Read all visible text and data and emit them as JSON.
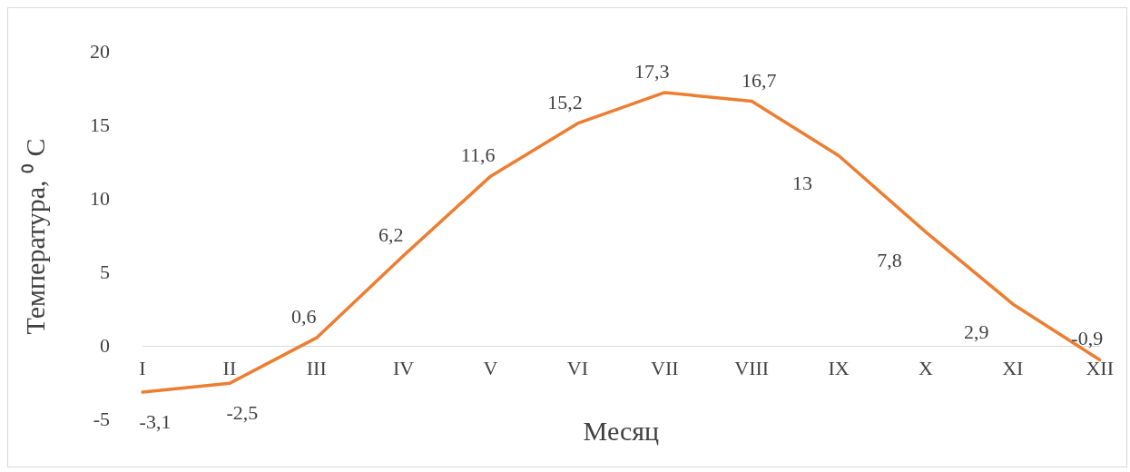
{
  "chart_data": {
    "type": "line",
    "xlabel": "Месяц",
    "ylabel": "Температура, ⁰ C",
    "categories": [
      "I",
      "II",
      "III",
      "IV",
      "V",
      "VI",
      "VII",
      "VIII",
      "IX",
      "X",
      "XI",
      "XII"
    ],
    "series": [
      {
        "color": "#ed7d31",
        "values": [
          -3.1,
          -2.5,
          0.6,
          6.2,
          11.6,
          15.2,
          17.3,
          16.7,
          13,
          7.8,
          2.9,
          -0.9
        ],
        "value_labels": [
          "-3,1",
          "-2,5",
          "0,6",
          "6,2",
          "11,6",
          "15,2",
          "17,3",
          "16,7",
          "13",
          "7,8",
          "2,9",
          "-0,9"
        ]
      }
    ],
    "ylim": [
      -5,
      20
    ],
    "yticks": [
      -5,
      0,
      5,
      10,
      15,
      20
    ],
    "grid": false,
    "legend": false,
    "marker": "none",
    "line_style": "solid"
  }
}
